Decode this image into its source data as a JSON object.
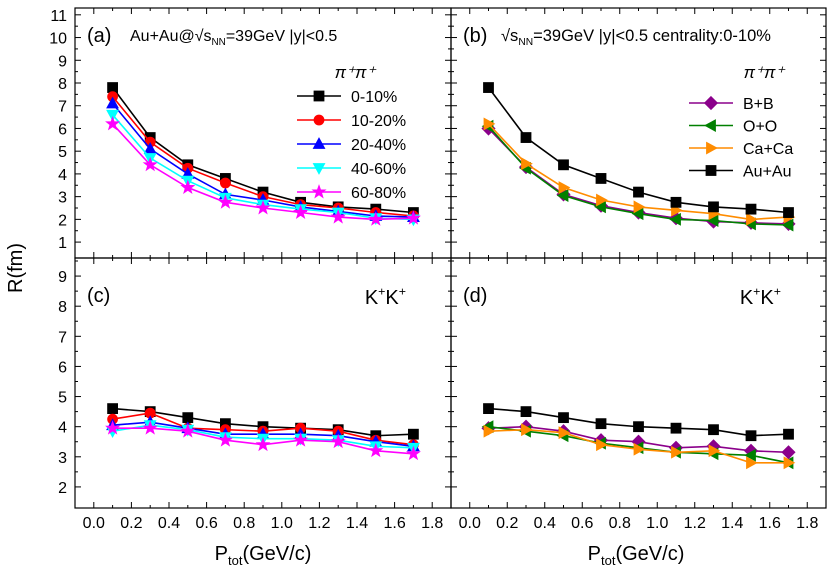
{
  "figure": {
    "ylabel": "R(fm)",
    "xlabel_main": "P",
    "xlabel_sub": "tot",
    "xlabel_unit": "(GeV/c)"
  },
  "chart_data": [
    {
      "id": "a",
      "type": "line",
      "panel_label": "(a)",
      "title_parts": [
        "Au+Au@",
        "√s",
        "NN",
        "=39GeV |y|<0.5"
      ],
      "legend_header": "π⁺π⁺",
      "legend_position": "top-right",
      "xlim": [
        -0.1,
        1.9
      ],
      "ylim": [
        0.3,
        11.3
      ],
      "xticks": [
        0.0,
        0.2,
        0.4,
        0.6,
        0.8,
        1.0,
        1.2,
        1.4,
        1.6,
        1.8
      ],
      "yticks": [
        1,
        2,
        3,
        4,
        5,
        6,
        7,
        8,
        9,
        10,
        11
      ],
      "x": [
        0.1,
        0.3,
        0.5,
        0.7,
        0.9,
        1.1,
        1.3,
        1.5,
        1.7
      ],
      "series": [
        {
          "name": "0-10%",
          "color": "#000000",
          "marker": "square",
          "values": [
            7.8,
            5.6,
            4.4,
            3.8,
            3.2,
            2.75,
            2.55,
            2.45,
            2.3
          ]
        },
        {
          "name": "10-20%",
          "color": "#ff0000",
          "marker": "circle",
          "values": [
            7.4,
            5.4,
            4.25,
            3.6,
            3.0,
            2.65,
            2.5,
            2.3,
            2.15
          ]
        },
        {
          "name": "20-40%",
          "color": "#0000ff",
          "marker": "triangle-up",
          "values": [
            7.1,
            5.1,
            4.0,
            3.1,
            2.85,
            2.55,
            2.35,
            2.15,
            2.1
          ]
        },
        {
          "name": "40-60%",
          "color": "#00ffff",
          "marker": "triangle-down",
          "values": [
            6.6,
            4.7,
            3.7,
            2.95,
            2.65,
            2.45,
            2.3,
            2.05,
            2.0
          ]
        },
        {
          "name": "60-80%",
          "color": "#ff00ff",
          "marker": "star",
          "values": [
            6.2,
            4.4,
            3.4,
            2.75,
            2.5,
            2.3,
            2.1,
            2.0,
            2.05
          ]
        }
      ]
    },
    {
      "id": "b",
      "type": "line",
      "panel_label": "(b)",
      "title_parts": [
        "√s",
        "NN",
        "=39GeV |y|<0.5 centrality:0-10%"
      ],
      "legend_header": "π⁺π⁺",
      "legend_position": "top-right",
      "xlim": [
        -0.1,
        1.9
      ],
      "ylim": [
        0.3,
        11.3
      ],
      "xticks": [
        0.0,
        0.2,
        0.4,
        0.6,
        0.8,
        1.0,
        1.2,
        1.4,
        1.6,
        1.8
      ],
      "yticks": [
        1,
        2,
        3,
        4,
        5,
        6,
        7,
        8,
        9,
        10,
        11
      ],
      "x": [
        0.1,
        0.3,
        0.5,
        0.7,
        0.9,
        1.1,
        1.3,
        1.5,
        1.7
      ],
      "series": [
        {
          "name": "B+B",
          "color": "#8b008b",
          "marker": "diamond",
          "values": [
            6.0,
            4.3,
            3.1,
            2.6,
            2.3,
            2.05,
            1.9,
            1.85,
            1.8
          ]
        },
        {
          "name": "O+O",
          "color": "#008000",
          "marker": "triangle-left",
          "values": [
            6.1,
            4.25,
            3.05,
            2.55,
            2.25,
            2.0,
            1.95,
            1.8,
            1.75
          ]
        },
        {
          "name": "Ca+Ca",
          "color": "#ff8c00",
          "marker": "triangle-right",
          "values": [
            6.2,
            4.45,
            3.4,
            2.85,
            2.55,
            2.4,
            2.25,
            2.0,
            2.1
          ]
        },
        {
          "name": "Au+Au",
          "color": "#000000",
          "marker": "square",
          "values": [
            7.8,
            5.6,
            4.4,
            3.8,
            3.2,
            2.75,
            2.55,
            2.45,
            2.3
          ]
        }
      ]
    },
    {
      "id": "c",
      "type": "line",
      "panel_label": "(c)",
      "particle_label_parts": [
        "K",
        "+",
        "K",
        "+"
      ],
      "xlim": [
        -0.1,
        1.9
      ],
      "ylim": [
        1.3,
        9.6
      ],
      "xticks": [
        0.0,
        0.2,
        0.4,
        0.6,
        0.8,
        1.0,
        1.2,
        1.4,
        1.6,
        1.8
      ],
      "yticks": [
        2,
        3,
        4,
        5,
        6,
        7,
        8,
        9
      ],
      "x": [
        0.1,
        0.3,
        0.5,
        0.7,
        0.9,
        1.1,
        1.3,
        1.5,
        1.7
      ],
      "series": [
        {
          "name": "0-10%",
          "color": "#000000",
          "marker": "square",
          "values": [
            4.6,
            4.5,
            4.3,
            4.1,
            4.0,
            3.95,
            3.9,
            3.7,
            3.75
          ]
        },
        {
          "name": "10-20%",
          "color": "#ff0000",
          "marker": "circle",
          "values": [
            4.25,
            4.45,
            3.95,
            3.9,
            3.85,
            3.95,
            3.85,
            3.55,
            3.4
          ]
        },
        {
          "name": "20-40%",
          "color": "#0000ff",
          "marker": "triangle-up",
          "values": [
            4.05,
            4.15,
            3.95,
            3.75,
            3.75,
            3.75,
            3.7,
            3.5,
            3.35
          ]
        },
        {
          "name": "40-60%",
          "color": "#00ffff",
          "marker": "triangle-down",
          "values": [
            3.85,
            4.05,
            3.9,
            3.65,
            3.6,
            3.6,
            3.55,
            3.35,
            3.3
          ]
        },
        {
          "name": "60-80%",
          "color": "#ff00ff",
          "marker": "star",
          "values": [
            3.95,
            3.95,
            3.85,
            3.55,
            3.4,
            3.55,
            3.5,
            3.2,
            3.1
          ]
        }
      ]
    },
    {
      "id": "d",
      "type": "line",
      "panel_label": "(d)",
      "particle_label_parts": [
        "K",
        "+",
        "K",
        "+"
      ],
      "xlim": [
        -0.1,
        1.9
      ],
      "ylim": [
        1.3,
        9.6
      ],
      "xticks": [
        0.0,
        0.2,
        0.4,
        0.6,
        0.8,
        1.0,
        1.2,
        1.4,
        1.6,
        1.8
      ],
      "yticks": [
        2,
        3,
        4,
        5,
        6,
        7,
        8,
        9
      ],
      "x": [
        0.1,
        0.3,
        0.5,
        0.7,
        0.9,
        1.1,
        1.3,
        1.5,
        1.7
      ],
      "series": [
        {
          "name": "B+B",
          "color": "#8b008b",
          "marker": "diamond",
          "values": [
            3.95,
            4.0,
            3.85,
            3.55,
            3.5,
            3.3,
            3.35,
            3.2,
            3.15
          ]
        },
        {
          "name": "O+O",
          "color": "#008000",
          "marker": "triangle-left",
          "values": [
            4.0,
            3.85,
            3.7,
            3.45,
            3.3,
            3.15,
            3.1,
            3.05,
            2.8
          ]
        },
        {
          "name": "Ca+Ca",
          "color": "#ff8c00",
          "marker": "triangle-right",
          "values": [
            3.85,
            3.9,
            3.8,
            3.4,
            3.25,
            3.15,
            3.2,
            2.8,
            2.8
          ]
        },
        {
          "name": "Au+Au",
          "color": "#000000",
          "marker": "square",
          "values": [
            4.6,
            4.5,
            4.3,
            4.1,
            4.0,
            3.95,
            3.9,
            3.7,
            3.75
          ]
        }
      ]
    }
  ]
}
